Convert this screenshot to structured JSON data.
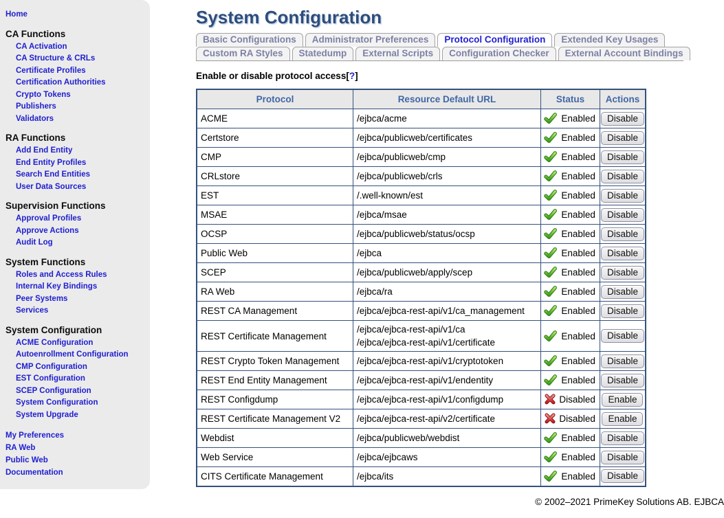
{
  "colors": {
    "title_navy": "#2e4d7b",
    "link_blue": "#2020cf",
    "active_tab_blue": "#2121d0",
    "inactive_tab_text": "#7d81a3",
    "table_border": "#34517c",
    "header_text": "#4166a5",
    "sidebar_bg": "#ebebeb",
    "status_green": "#3f9e1c",
    "status_red": "#c01f1f"
  },
  "sidebar": {
    "home": "Home",
    "sections": [
      {
        "title": "CA Functions",
        "items": [
          "CA Activation",
          "CA Structure & CRLs",
          "Certificate Profiles",
          "Certification Authorities",
          "Crypto Tokens",
          "Publishers",
          "Validators"
        ]
      },
      {
        "title": "RA Functions",
        "items": [
          "Add End Entity",
          "End Entity Profiles",
          "Search End Entities",
          "User Data Sources"
        ]
      },
      {
        "title": "Supervision Functions",
        "items": [
          "Approval Profiles",
          "Approve Actions",
          "Audit Log"
        ]
      },
      {
        "title": "System Functions",
        "items": [
          "Roles and Access Rules",
          "Internal Key Bindings",
          "Peer Systems",
          "Services"
        ]
      },
      {
        "title": "System Configuration",
        "items": [
          "ACME Configuration",
          "Autoenrollment Configuration",
          "CMP Configuration",
          "EST Configuration",
          "SCEP Configuration",
          "System Configuration",
          "System Upgrade"
        ]
      }
    ],
    "footer_links": [
      "My Preferences",
      "RA Web",
      "Public Web",
      "Documentation"
    ]
  },
  "header": {
    "title": "System Configuration"
  },
  "tabs": {
    "row1": [
      {
        "label": "Basic Configurations",
        "active": false
      },
      {
        "label": "Administrator Preferences",
        "active": false
      },
      {
        "label": "Protocol Configuration",
        "active": true
      },
      {
        "label": "Extended Key Usages",
        "active": false
      }
    ],
    "row2": [
      {
        "label": "Custom RA Styles",
        "active": false
      },
      {
        "label": "Statedump",
        "active": false
      },
      {
        "label": "External Scripts",
        "active": false
      },
      {
        "label": "Configuration Checker",
        "active": false
      },
      {
        "label": "External Account Bindings",
        "active": false
      }
    ]
  },
  "heading": {
    "text": "Enable or disable protocol access",
    "bracket_open": "[",
    "help_mark": "?",
    "bracket_close": "]"
  },
  "table": {
    "headers": [
      "Protocol",
      "Resource Default URL",
      "Status",
      "Actions"
    ],
    "status_labels": {
      "enabled": "Enabled",
      "disabled": "Disabled"
    },
    "rows": [
      {
        "protocol": "ACME",
        "urls": [
          "/ejbca/acme"
        ],
        "status": "Enabled",
        "action": "Disable"
      },
      {
        "protocol": "Certstore",
        "urls": [
          "/ejbca/publicweb/certificates"
        ],
        "status": "Enabled",
        "action": "Disable"
      },
      {
        "protocol": "CMP",
        "urls": [
          "/ejbca/publicweb/cmp"
        ],
        "status": "Enabled",
        "action": "Disable"
      },
      {
        "protocol": "CRLstore",
        "urls": [
          "/ejbca/publicweb/crls"
        ],
        "status": "Enabled",
        "action": "Disable"
      },
      {
        "protocol": "EST",
        "urls": [
          "/.well-known/est"
        ],
        "status": "Enabled",
        "action": "Disable"
      },
      {
        "protocol": "MSAE",
        "urls": [
          "/ejbca/msae"
        ],
        "status": "Enabled",
        "action": "Disable"
      },
      {
        "protocol": "OCSP",
        "urls": [
          "/ejbca/publicweb/status/ocsp"
        ],
        "status": "Enabled",
        "action": "Disable"
      },
      {
        "protocol": "Public Web",
        "urls": [
          "/ejbca"
        ],
        "status": "Enabled",
        "action": "Disable"
      },
      {
        "protocol": "SCEP",
        "urls": [
          "/ejbca/publicweb/apply/scep"
        ],
        "status": "Enabled",
        "action": "Disable"
      },
      {
        "protocol": "RA Web",
        "urls": [
          "/ejbca/ra"
        ],
        "status": "Enabled",
        "action": "Disable"
      },
      {
        "protocol": "REST CA Management",
        "urls": [
          "/ejbca/ejbca-rest-api/v1/ca_management"
        ],
        "status": "Enabled",
        "action": "Disable"
      },
      {
        "protocol": "REST Certificate Management",
        "urls": [
          "/ejbca/ejbca-rest-api/v1/ca",
          "/ejbca/ejbca-rest-api/v1/certificate"
        ],
        "status": "Enabled",
        "action": "Disable"
      },
      {
        "protocol": "REST Crypto Token Management",
        "urls": [
          "/ejbca/ejbca-rest-api/v1/cryptotoken"
        ],
        "status": "Enabled",
        "action": "Disable"
      },
      {
        "protocol": "REST End Entity Management",
        "urls": [
          "/ejbca/ejbca-rest-api/v1/endentity"
        ],
        "status": "Enabled",
        "action": "Disable"
      },
      {
        "protocol": "REST Configdump",
        "urls": [
          "/ejbca/ejbca-rest-api/v1/configdump"
        ],
        "status": "Disabled",
        "action": "Enable"
      },
      {
        "protocol": "REST Certificate Management V2",
        "urls": [
          "/ejbca/ejbca-rest-api/v2/certificate"
        ],
        "status": "Disabled",
        "action": "Enable"
      },
      {
        "protocol": "Webdist",
        "urls": [
          "/ejbca/publicweb/webdist"
        ],
        "status": "Enabled",
        "action": "Disable"
      },
      {
        "protocol": "Web Service",
        "urls": [
          "/ejbca/ejbcaws"
        ],
        "status": "Enabled",
        "action": "Disable"
      },
      {
        "protocol": "CITS Certificate Management",
        "urls": [
          "/ejbca/its"
        ],
        "status": "Enabled",
        "action": "Disable"
      }
    ]
  },
  "footer": {
    "copyright": "© 2002–2021 PrimeKey Solutions AB. EJBCA"
  }
}
